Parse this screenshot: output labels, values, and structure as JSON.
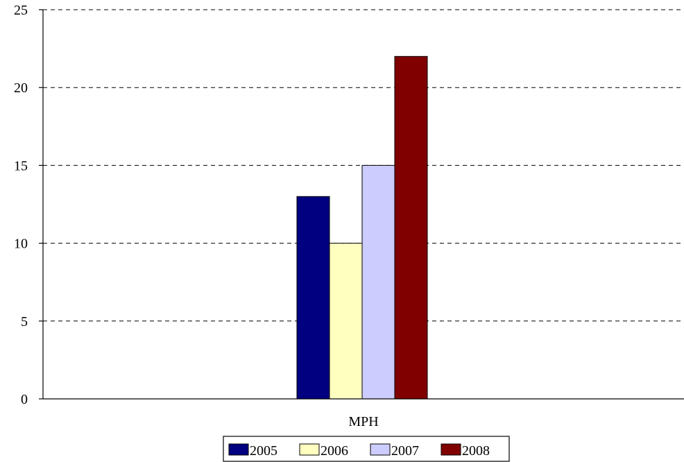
{
  "chart_data": {
    "type": "bar",
    "title": "",
    "xlabel": "",
    "ylabel": "",
    "categories": [
      "MPH"
    ],
    "series": [
      {
        "name": "2005",
        "values": [
          13
        ],
        "color": "#000080"
      },
      {
        "name": "2006",
        "values": [
          10
        ],
        "color": "#FFFFC0"
      },
      {
        "name": "2007",
        "values": [
          15
        ],
        "color": "#CCCCFF"
      },
      {
        "name": "2008",
        "values": [
          22
        ],
        "color": "#800000"
      }
    ],
    "ylim": [
      0,
      25
    ],
    "yticks": [
      "0",
      "5",
      "10",
      "15",
      "20",
      "25"
    ],
    "grid": "dashed horizontal",
    "legend": "bottom"
  }
}
